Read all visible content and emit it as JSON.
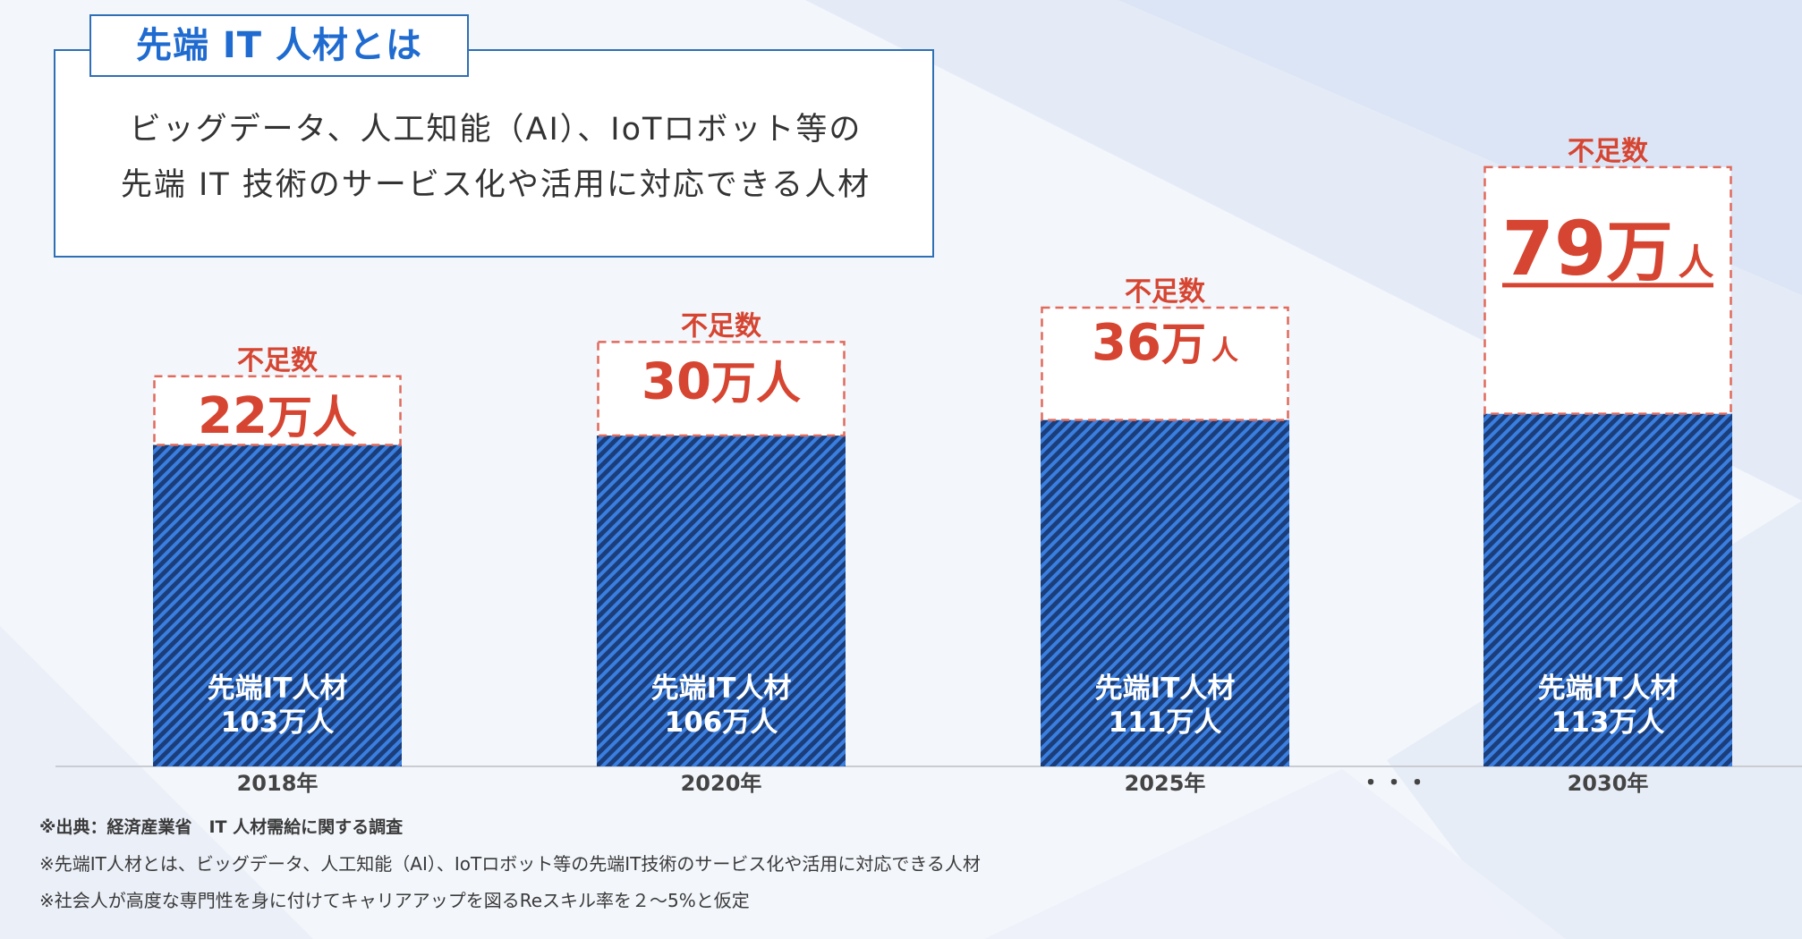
{
  "definition": {
    "title": "先端 IT 人材とは",
    "line1": "ビッグデータ、人工知能（AI）、IoTロボット等の",
    "line2": "先端 IT 技術のサービス化や活用に対応できる人材"
  },
  "chart_data": {
    "type": "bar",
    "stacked": true,
    "categories": [
      "2018年",
      "2020年",
      "2025年",
      "2030年"
    ],
    "gap_marker": "・・・",
    "series": [
      {
        "name": "先端IT人材",
        "values": [
          103,
          106,
          111,
          113
        ],
        "labels": [
          "103万人",
          "106万人",
          "111万人",
          "113万人"
        ],
        "color": "#1e4f9c"
      },
      {
        "name": "不足数",
        "values": [
          22,
          30,
          36,
          79
        ],
        "number_labels": [
          "22",
          "30",
          "36",
          "79"
        ],
        "big_unit": "万人",
        "small_unit": "人",
        "color": "#d64531"
      }
    ],
    "grid": false,
    "legend": "none"
  },
  "notes": {
    "source": "※出典：経済産業省　IT 人材需給に関する調査",
    "definition": "※先端IT人材とは、ビッグデータ、人工知能（AI）、IoTロボット等の先端IT技術のサービス化や活用に対応できる人材",
    "assumption": "※社会人が高度な専門性を身に付けてキャリアアップを図るReスキル率を２～5%と仮定"
  }
}
